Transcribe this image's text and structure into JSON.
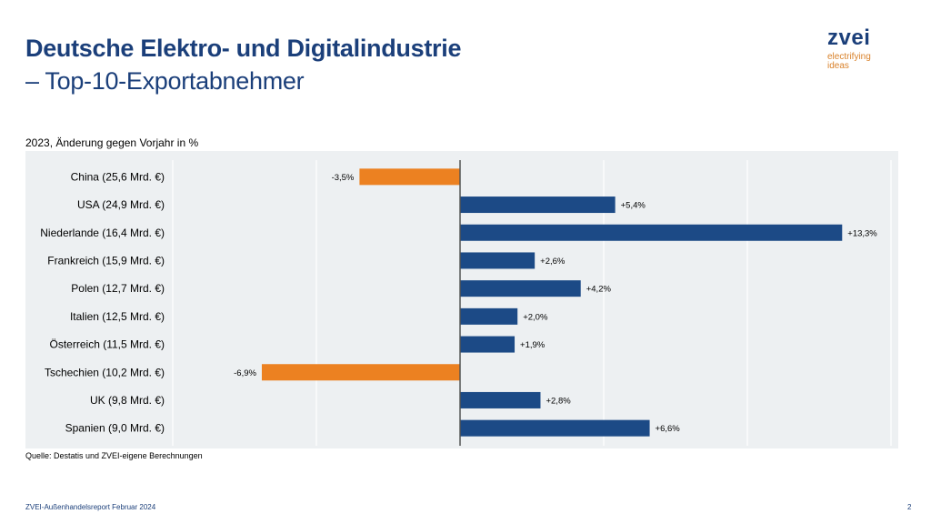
{
  "header": {
    "title_line1": "Deutsche Elektro- und Digitalindustrie",
    "title_line2": "– Top-10-Exportabnehmer"
  },
  "logo": {
    "name": "zvei",
    "tagline_line1": "electrifying",
    "tagline_line2": "ideas"
  },
  "colors": {
    "brand_blue": "#1b3f7a",
    "bar_positive": "#1c4a86",
    "bar_negative": "#ec8121",
    "panel_bg": "#edf0f2",
    "logo_accent": "#d9822b"
  },
  "chart_data": {
    "type": "bar",
    "orientation": "horizontal",
    "title": "2023, Änderung gegen Vorjahr in %",
    "xlabel": "",
    "ylabel": "",
    "xlim": [
      -10,
      15
    ],
    "grid_step": 5,
    "grid": true,
    "categories": [
      "China (25,6 Mrd. €)",
      "USA (24,9 Mrd. €)",
      "Niederlande (16,4 Mrd. €)",
      "Frankreich (15,9 Mrd. €)",
      "Polen (12,7 Mrd. €)",
      "Italien (12,5 Mrd. €)",
      "Österreich (11,5 Mrd. €)",
      "Tschechien (10,2 Mrd. €)",
      "UK (9,8 Mrd. €)",
      "Spanien (9,0 Mrd. €)"
    ],
    "values": [
      -3.5,
      5.4,
      13.3,
      2.6,
      4.2,
      2.0,
      1.9,
      -6.9,
      2.8,
      6.6
    ],
    "data_labels": [
      "-3,5%",
      "+5,4%",
      "+13,3%",
      "+2,6%",
      "+4,2%",
      "+2,0%",
      "+1,9%",
      "-6,9%",
      "+2,8%",
      "+6,6%"
    ]
  },
  "source": "Quelle: Destatis und ZVEI-eigene Berechnungen",
  "footer": {
    "report": "ZVEI-Außenhandelsreport Februar 2024",
    "page": "2"
  }
}
